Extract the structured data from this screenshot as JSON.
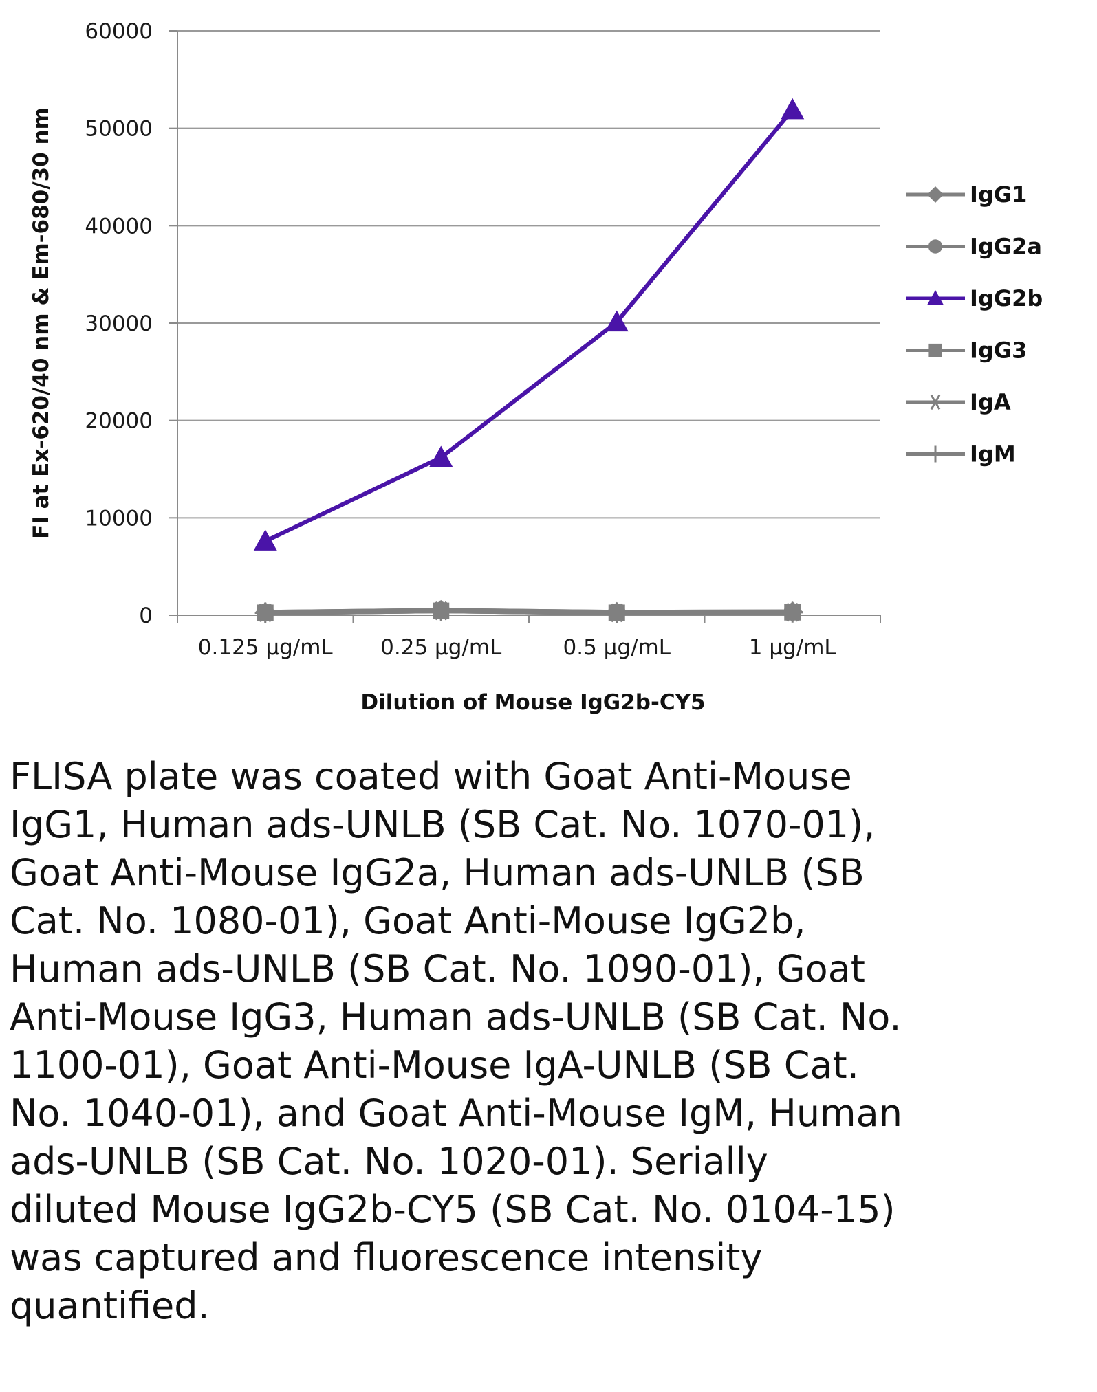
{
  "chart_data": {
    "type": "line",
    "xlabel": "Dilution of Mouse IgG2b-CY5",
    "ylabel": "FI at Ex-620/40 nm & Em-680/30 nm",
    "categories": [
      "0.125 µg/mL",
      "0.25 µg/mL",
      "0.5 µg/mL",
      "1 µg/mL"
    ],
    "ylim": [
      0,
      60000
    ],
    "yticks": [
      0,
      10000,
      20000,
      30000,
      40000,
      50000,
      60000
    ],
    "grid": true,
    "legend_position": "right",
    "series": [
      {
        "name": "IgG1",
        "marker": "diamond",
        "color": "#808080",
        "values": [
          300,
          500,
          300,
          350
        ]
      },
      {
        "name": "IgG2a",
        "marker": "circle",
        "color": "#808080",
        "values": [
          300,
          500,
          300,
          350
        ]
      },
      {
        "name": "IgG2b",
        "marker": "triangle",
        "color": "#4a14a8",
        "values": [
          7600,
          16200,
          30100,
          51900
        ]
      },
      {
        "name": "IgG3",
        "marker": "square",
        "color": "#808080",
        "values": [
          250,
          450,
          250,
          300
        ]
      },
      {
        "name": "IgA",
        "marker": "star",
        "color": "#808080",
        "values": [
          250,
          450,
          250,
          300
        ]
      },
      {
        "name": "IgM",
        "marker": "plus",
        "color": "#808080",
        "values": [
          250,
          450,
          250,
          300
        ]
      }
    ]
  },
  "caption": "FLISA plate was coated with Goat Anti-Mouse IgG1, Human ads-UNLB (SB Cat. No. 1070-01), Goat Anti-Mouse IgG2a, Human ads-UNLB (SB Cat. No. 1080-01), Goat Anti-Mouse IgG2b, Human ads-UNLB (SB Cat. No. 1090-01), Goat Anti-Mouse IgG3, Human ads-UNLB (SB Cat. No. 1100-01), Goat Anti-Mouse IgA-UNLB (SB Cat. No. 1040-01), and Goat Anti-Mouse IgM, Human ads-UNLB (SB Cat. No. 1020-01).  Serially diluted Mouse IgG2b-CY5 (SB Cat. No. 0104-15) was captured and fluorescence intensity quantified."
}
